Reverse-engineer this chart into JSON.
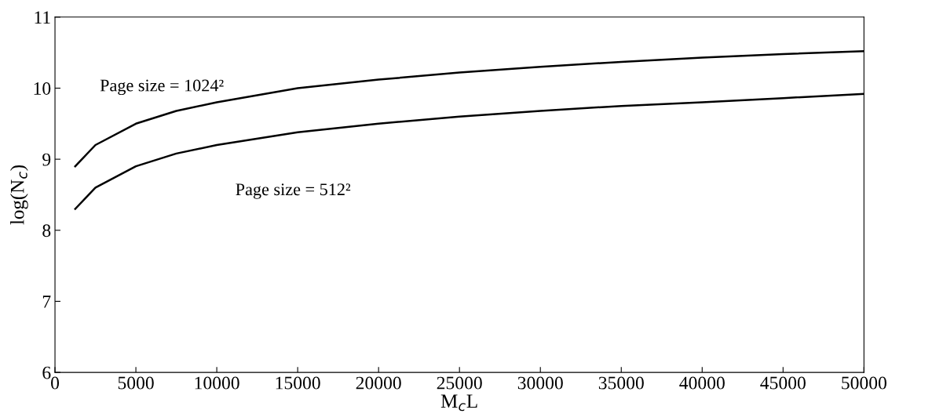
{
  "chart_data": {
    "type": "line",
    "xlabel": "M$_{c}$L",
    "ylabel": "log(N$_{c}$)",
    "xlim": [
      0,
      50000
    ],
    "xticks": [
      0,
      5000,
      10000,
      15000,
      20000,
      25000,
      30000,
      35000,
      40000,
      45000,
      50000
    ],
    "ylim": [
      6,
      11
    ],
    "yticks": [
      6,
      7,
      8,
      9,
      10,
      11
    ],
    "grid": false,
    "legend": false,
    "x": [
      1250,
      2500,
      5000,
      7500,
      10000,
      15000,
      20000,
      25000,
      30000,
      35000,
      40000,
      45000,
      50000
    ],
    "series": [
      {
        "color": "#000000",
        "values": [
          8.9,
          9.2,
          9.5,
          9.68,
          9.8,
          10.0,
          10.12,
          10.22,
          10.3,
          10.37,
          10.43,
          10.48,
          10.52
        ]
      },
      {
        "color": "#000000",
        "values": [
          8.3,
          8.6,
          8.9,
          9.08,
          9.2,
          9.38,
          9.5,
          9.6,
          9.68,
          9.75,
          9.8,
          9.86,
          9.92
        ]
      }
    ],
    "annotations": [
      {
        "text": "Page size = 1024²",
        "x": 2500,
        "y": 9.2
      },
      {
        "text": "Page size = 512²",
        "x": 10000,
        "y": 9.2
      }
    ]
  }
}
